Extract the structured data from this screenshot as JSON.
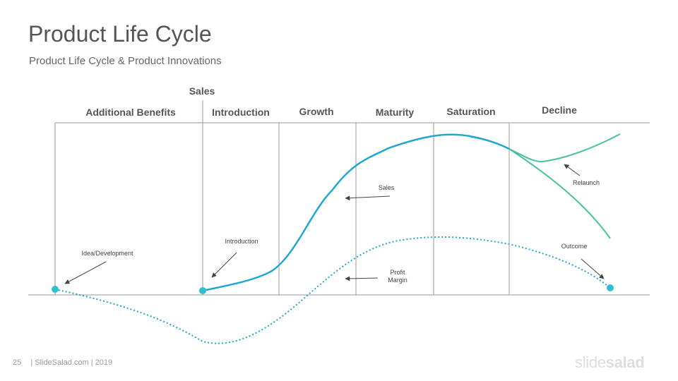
{
  "header": {
    "title": "Product Life Cycle",
    "subtitle": "Product Life Cycle & Product Innovations"
  },
  "axis": {
    "y_label": "Sales"
  },
  "phases": [
    "Additional Benefits",
    "Introduction",
    "Growth",
    "Maturity",
    "Saturation",
    "Decline"
  ],
  "annotations": {
    "idea": "Idea/Development",
    "introduction": "Introduction",
    "sales": "Sales",
    "profit_line1": "Profit",
    "profit_line2": "Margin",
    "relaunch": "Relaunch",
    "outcome": "Outcome"
  },
  "footer": {
    "page_number": "25",
    "credit": "| SlideSalad.com | 2019"
  },
  "logo": {
    "part1": "slide",
    "part2": "salad"
  },
  "colors": {
    "sales_curve": "#1fa8cf",
    "relaunch_curve": "#4cc29a",
    "profit_curve": "#1fa8cf",
    "marker": "#2fc0cf",
    "grid": "#999999",
    "arrow": "#444444"
  }
}
